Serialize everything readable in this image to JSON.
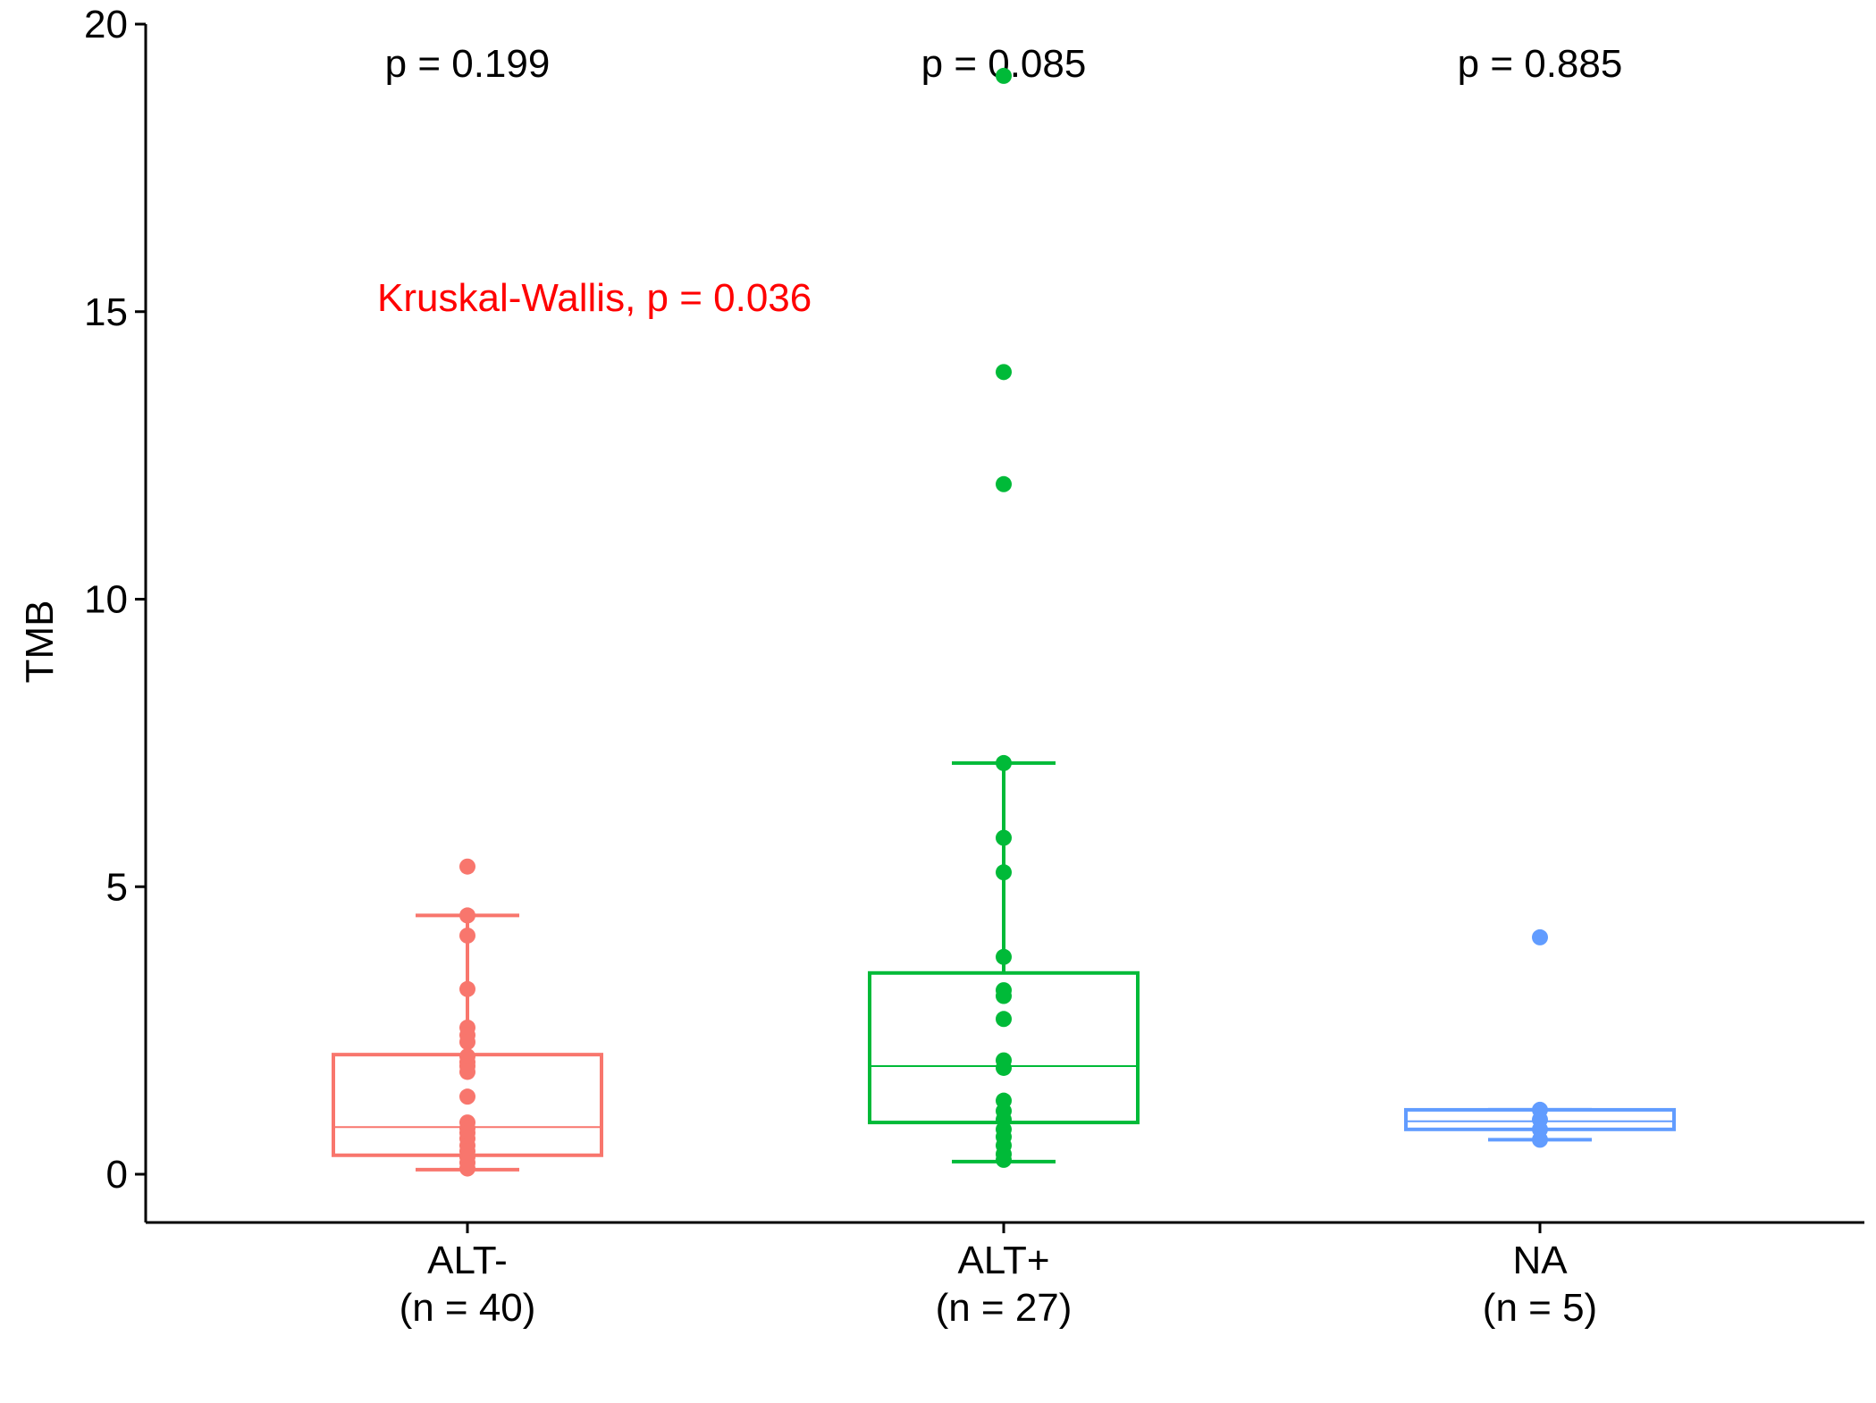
{
  "chart_data": {
    "type": "box",
    "ylabel": "TMB",
    "ylim": [
      -0.85,
      20
    ],
    "yticks": [
      0,
      5,
      10,
      15,
      20
    ],
    "annotation": {
      "text": "Kruskal-Wallis, p = 0.036",
      "color": "#FF0000"
    },
    "groups": [
      {
        "name": "ALT-",
        "n_label": "(n = 40)",
        "color": "#F8766D",
        "p_label": "p = 0.199",
        "box": {
          "whisker_low": 0.08,
          "q1": 0.33,
          "median": 0.82,
          "q3": 2.08,
          "whisker_high": 4.5
        },
        "points": [
          5.35,
          4.5,
          4.15,
          3.22,
          2.55,
          2.42,
          2.3,
          2.05,
          1.95,
          1.88,
          1.78,
          1.35,
          0.9,
          0.8,
          0.72,
          0.62,
          0.5,
          0.4,
          0.3,
          0.2,
          0.1
        ]
      },
      {
        "name": "ALT+",
        "n_label": "(n = 27)",
        "color": "#00BA38",
        "p_label": "p = 0.085",
        "box": {
          "whisker_low": 0.22,
          "q1": 0.9,
          "median": 1.88,
          "q3": 3.5,
          "whisker_high": 7.15
        },
        "points": [
          19.1,
          13.95,
          12.0,
          7.15,
          5.85,
          5.25,
          3.78,
          3.2,
          3.1,
          2.7,
          1.98,
          1.85,
          1.28,
          1.1,
          0.95,
          0.78,
          0.65,
          0.5,
          0.35,
          0.25
        ]
      },
      {
        "name": "NA",
        "n_label": "(n = 5)",
        "color": "#619CFF",
        "p_label": "p = 0.885",
        "box": {
          "whisker_low": 0.6,
          "q1": 0.78,
          "median": 0.92,
          "q3": 1.12,
          "whisker_high": 1.12
        },
        "points": [
          4.12,
          1.12,
          0.95,
          0.78,
          0.6
        ]
      }
    ]
  }
}
